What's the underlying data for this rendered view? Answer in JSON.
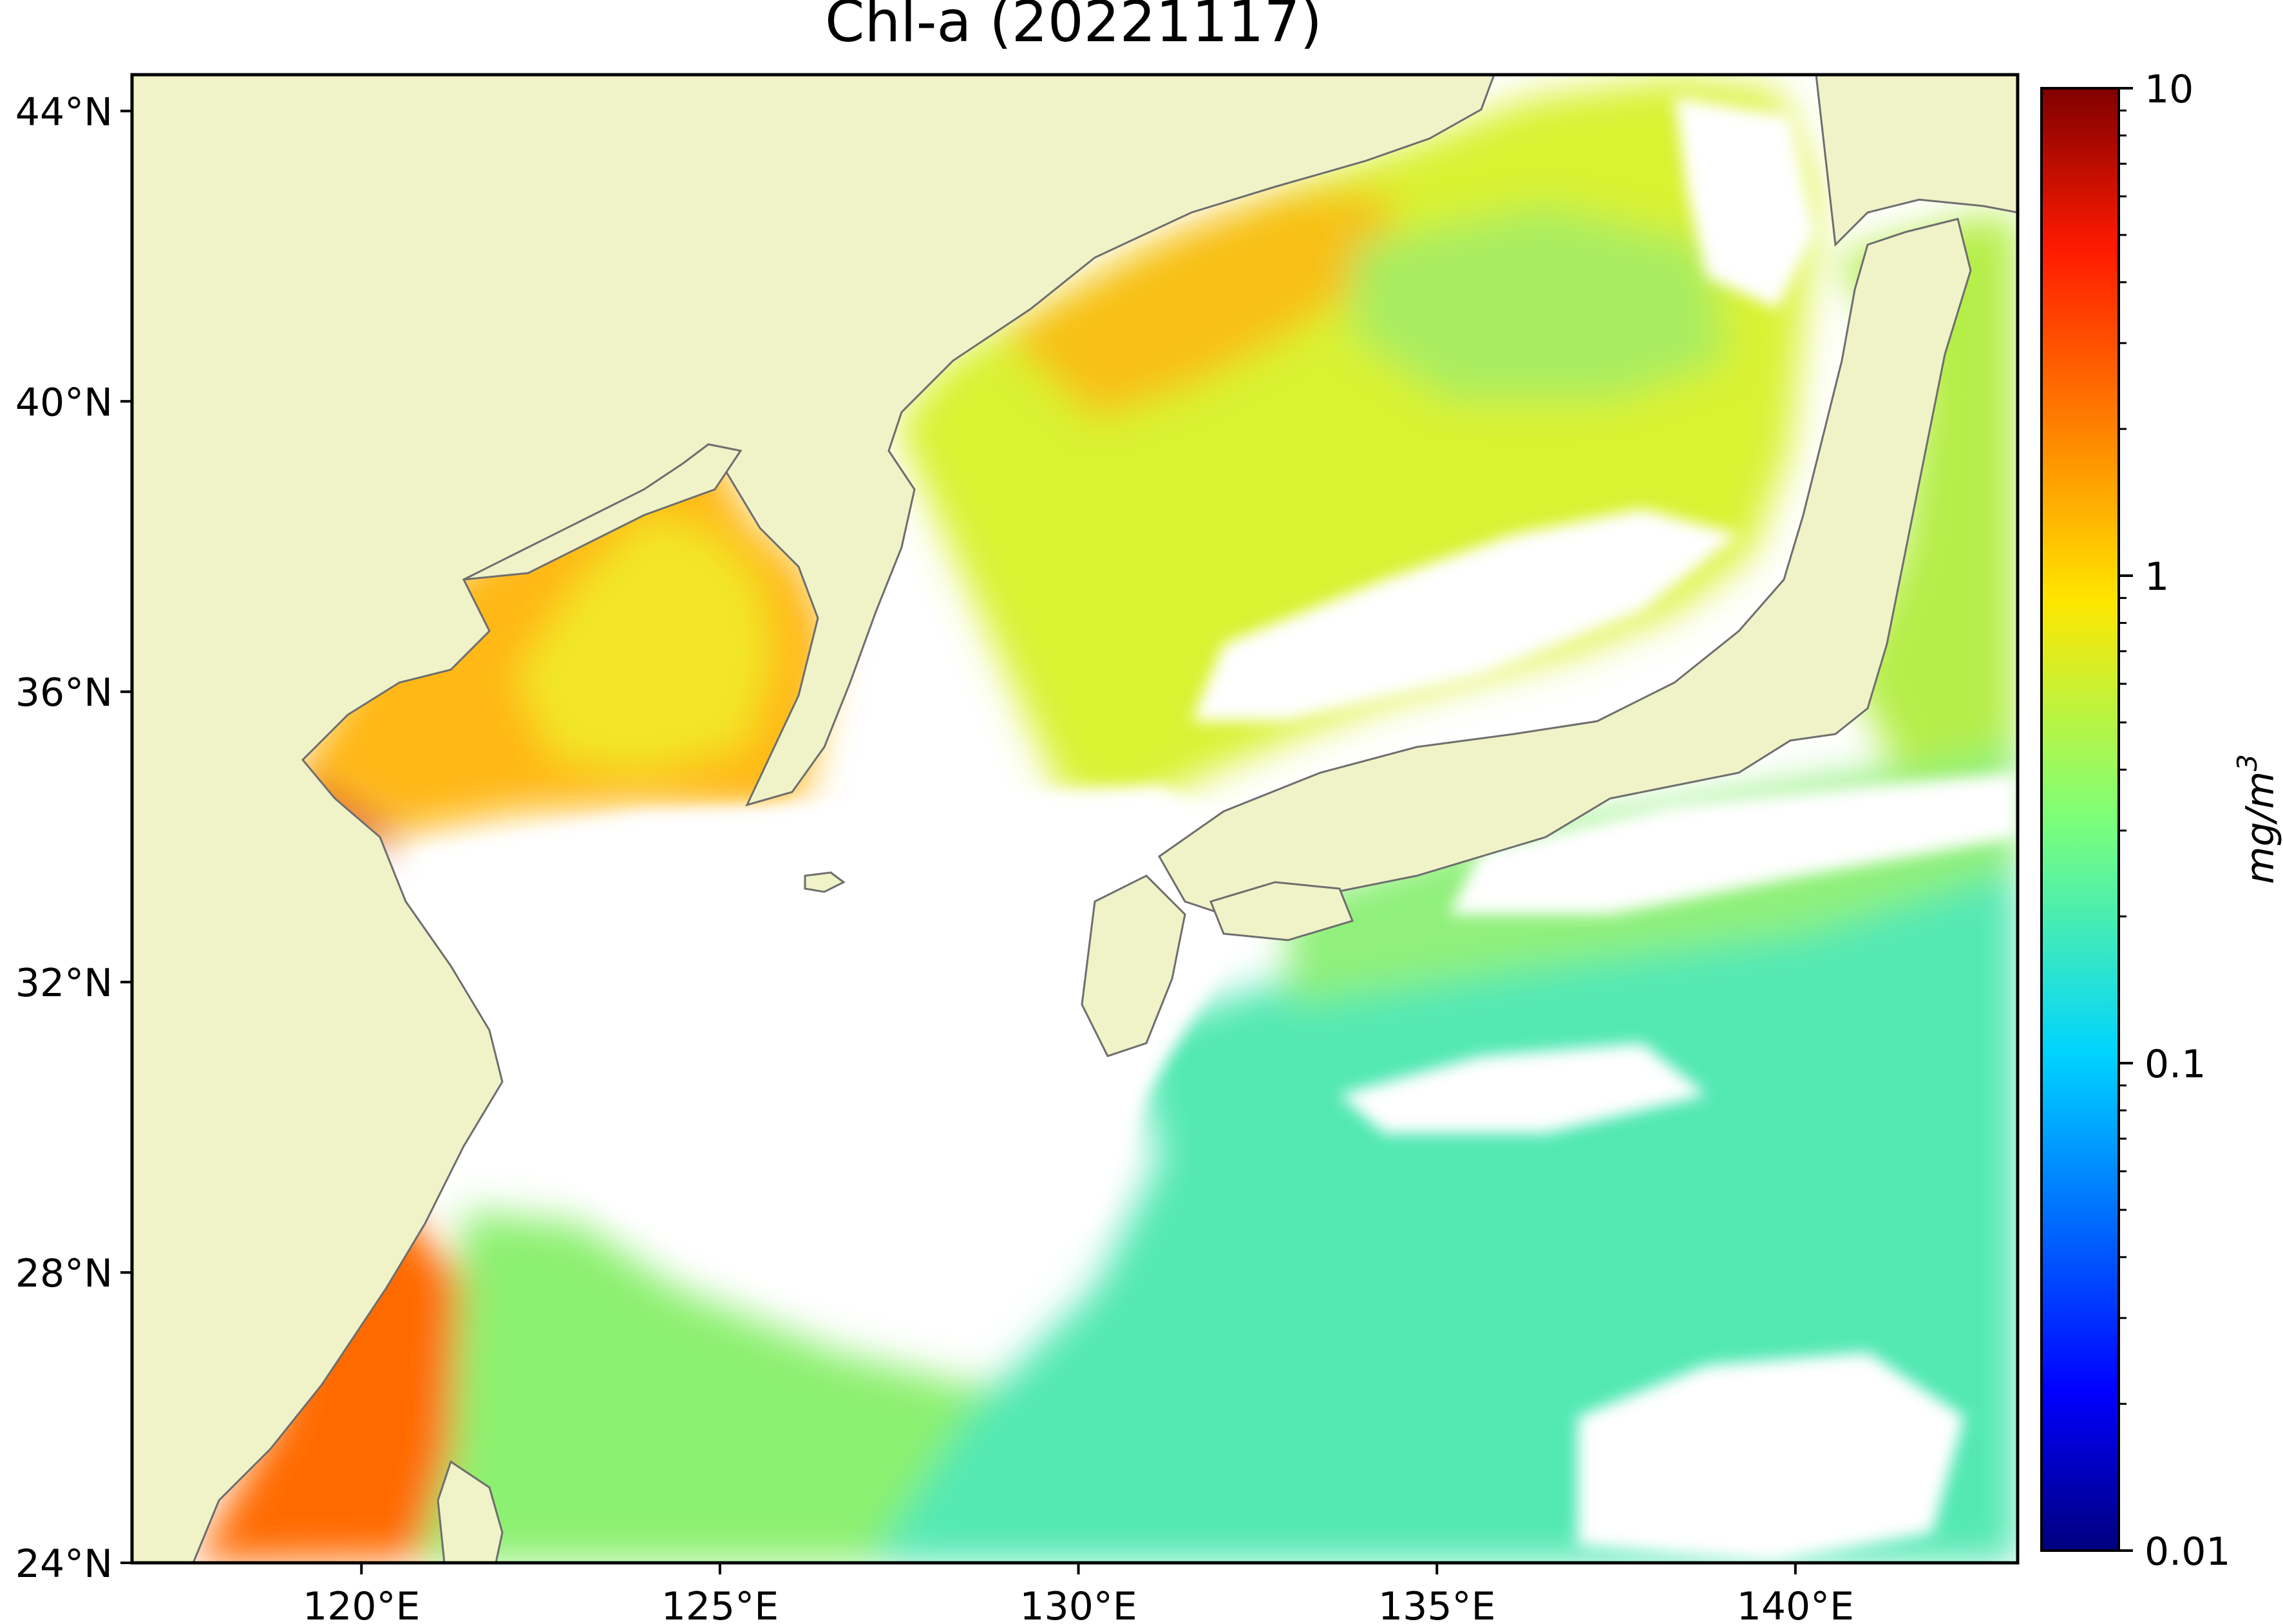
{
  "title": "Chl-a (20221117)",
  "map": {
    "lon_range": [
      116.8,
      143.1
    ],
    "lat_range": [
      24.0,
      44.5
    ],
    "x_ticks": [
      {
        "lon": 120,
        "label": "120°E"
      },
      {
        "lon": 125,
        "label": "125°E"
      },
      {
        "lon": 130,
        "label": "130°E"
      },
      {
        "lon": 135,
        "label": "135°E"
      },
      {
        "lon": 140,
        "label": "140°E"
      }
    ],
    "y_ticks": [
      {
        "lat": 44,
        "label": "44°N"
      },
      {
        "lat": 40,
        "label": "40°N"
      },
      {
        "lat": 36,
        "label": "36°N"
      },
      {
        "lat": 32,
        "label": "32°N"
      },
      {
        "lat": 28,
        "label": "28°N"
      },
      {
        "lat": 24,
        "label": "24°N"
      }
    ],
    "colors": {
      "land": "#f0f2c8",
      "no_data": "#ffffff",
      "coastline": "#6e6e6e"
    }
  },
  "colorbar": {
    "label": "mg/m",
    "label_sup": "3",
    "scale": "log",
    "range": [
      0.01,
      10
    ],
    "colormap": "jet",
    "ticks": [
      {
        "value": 10,
        "label": "10"
      },
      {
        "value": 1,
        "label": "1"
      },
      {
        "value": 0.1,
        "label": "0.1"
      },
      {
        "value": 0.01,
        "label": "0.01"
      }
    ]
  }
}
